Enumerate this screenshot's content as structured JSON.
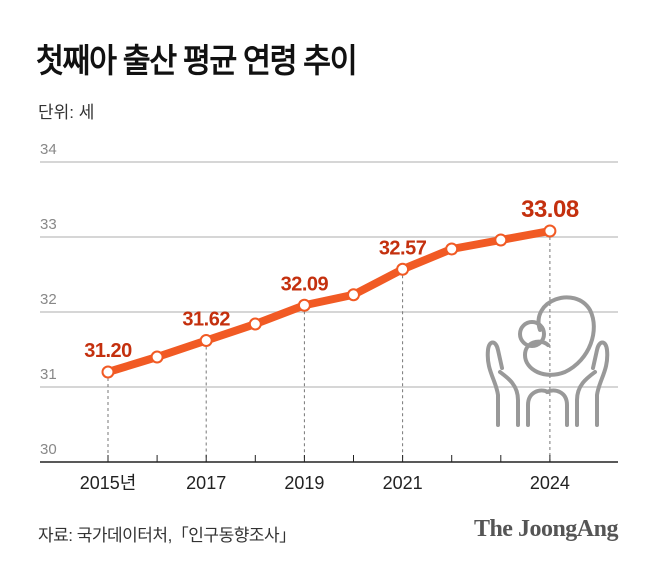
{
  "title": "첫째아 출산 평균 연령 추이",
  "unit": "단위: 세",
  "source": "자료: 국가데이터처,「인구동향조사」",
  "logo": "The JoongAng",
  "colors": {
    "line": "#f15a24",
    "label": "#c4300e",
    "grid": "#c8c8c8",
    "axis": "#222222",
    "icon": "#999999"
  },
  "icon": "hands-holding-baby-icon",
  "chart_data": {
    "type": "line",
    "title": "첫째아 출산 평균 연령 추이",
    "ylabel": "단위: 세",
    "x": [
      2015,
      2016,
      2017,
      2018,
      2019,
      2020,
      2021,
      2022,
      2023,
      2024
    ],
    "values": [
      31.2,
      31.4,
      31.62,
      31.84,
      32.09,
      32.23,
      32.57,
      32.84,
      32.96,
      33.08
    ],
    "data_labels": {
      "2015": "31.20",
      "2017": "31.62",
      "2019": "32.09",
      "2021": "32.57",
      "2024": "33.08"
    },
    "x_tick_labels": [
      {
        "x": 2015,
        "label": "2015년"
      },
      {
        "x": 2017,
        "label": "2017"
      },
      {
        "x": 2019,
        "label": "2019"
      },
      {
        "x": 2021,
        "label": "2021"
      },
      {
        "x": 2024,
        "label": "2024"
      }
    ],
    "y_ticks": [
      "30",
      "31",
      "32",
      "33",
      "34"
    ],
    "ylim": [
      30,
      34
    ],
    "grid": true
  }
}
